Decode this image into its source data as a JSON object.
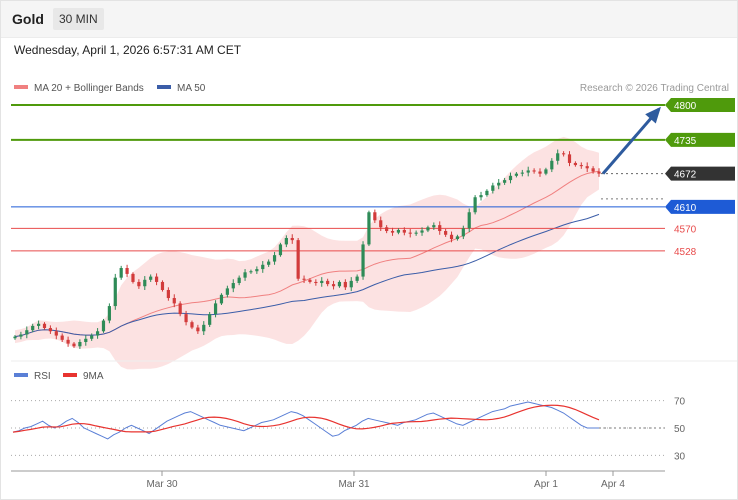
{
  "header": {
    "title": "Gold",
    "timeframe": "30 MIN"
  },
  "datetime": "Wednesday, April 1, 2026 6:57:31 AM CET",
  "credit": "Research © 2026 Trading Central",
  "colors": {
    "resistance": "#4f9a0c",
    "current": "#333333",
    "pivot": "#1e5bd6",
    "support": "#e84b4b",
    "bollinger": "#fbd5d5",
    "ma20": "#f08080",
    "ma50": "#3b5da8",
    "up_candle": "#2e8b57",
    "down_candle": "#d23b3b",
    "arrow": "#2e5b9e",
    "rsi": "#5a7fd6",
    "rsi_ma": "#e8332f"
  },
  "chart_data": [
    {
      "type": "candlestick",
      "legend": [
        "MA 20 + Bollinger Bands",
        "MA 50"
      ],
      "ylim": [
        4330,
        4815
      ],
      "x_labels": [
        "Mar 30",
        "Mar 31",
        "Apr 1",
        "Apr 4"
      ],
      "levels": [
        {
          "value": 4800,
          "label": "4800",
          "kind": "resistance"
        },
        {
          "value": 4735,
          "label": "4735",
          "kind": "resistance"
        },
        {
          "value": 4672,
          "label": "4672",
          "kind": "current"
        },
        {
          "value": 4610,
          "label": "4610",
          "kind": "pivot"
        },
        {
          "value": 4570,
          "label": "4570",
          "kind": "support"
        },
        {
          "value": 4528,
          "label": "4528",
          "kind": "support"
        }
      ],
      "close_series": [
        4368,
        4372,
        4380,
        4388,
        4392,
        4384,
        4378,
        4370,
        4362,
        4355,
        4350,
        4358,
        4364,
        4370,
        4378,
        4398,
        4425,
        4478,
        4496,
        4485,
        4470,
        4462,
        4474,
        4480,
        4470,
        4455,
        4440,
        4430,
        4410,
        4395,
        4385,
        4378,
        4390,
        4410,
        4430,
        4446,
        4458,
        4468,
        4478,
        4488,
        4490,
        4494,
        4502,
        4508,
        4520,
        4540,
        4552,
        4548,
        4476,
        4474,
        4470,
        4468,
        4472,
        4466,
        4462,
        4470,
        4460,
        4472,
        4480,
        4540,
        4600,
        4585,
        4572,
        4565,
        4562,
        4567,
        4562,
        4560,
        4562,
        4566,
        4572,
        4576,
        4565,
        4558,
        4550,
        4555,
        4570,
        4600,
        4628,
        4632,
        4640,
        4650,
        4655,
        4660,
        4668,
        4672,
        4674,
        4678,
        4676,
        4672,
        4680,
        4696,
        4710,
        4708,
        4692,
        4688,
        4686,
        4682,
        4676,
        4672
      ],
      "projection": {
        "from": 4672,
        "to": 4800
      }
    },
    {
      "type": "line",
      "legend": [
        "RSI",
        "9MA"
      ],
      "ylim": [
        20,
        80
      ],
      "y_ticks": [
        70,
        50,
        30
      ],
      "rsi": [
        47,
        48,
        50,
        51,
        53,
        55,
        52,
        50,
        52,
        55,
        57,
        54,
        50,
        48,
        46,
        44,
        42,
        45,
        47,
        50,
        52,
        50,
        48,
        46,
        49,
        52,
        55,
        57,
        59,
        61,
        62,
        60,
        58,
        56,
        54,
        52,
        51,
        50,
        49,
        48,
        50,
        52,
        54,
        55,
        56,
        58,
        60,
        62,
        61,
        59,
        56,
        53,
        50,
        47,
        44,
        45,
        48,
        50,
        52,
        55,
        57,
        56,
        55,
        54,
        53,
        52,
        54,
        55,
        56,
        58,
        60,
        61,
        59,
        57,
        55,
        53,
        52,
        54,
        56,
        58,
        60,
        62,
        63,
        64,
        66,
        67,
        68,
        69,
        68,
        67,
        66,
        65,
        63,
        61,
        58,
        55,
        52,
        50,
        50,
        50
      ]
    }
  ]
}
